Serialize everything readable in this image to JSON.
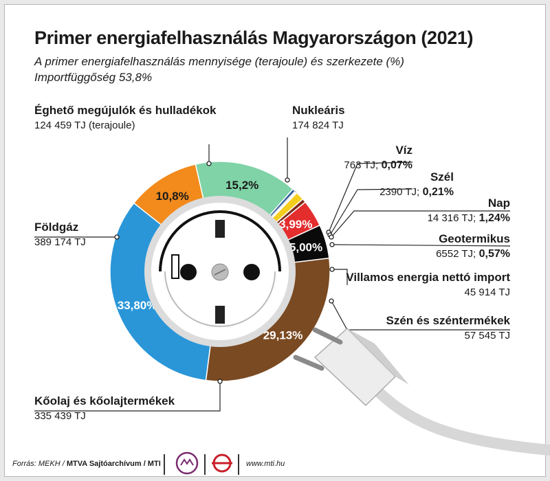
{
  "header": {
    "title": "Primer energiafelhasználás Magyarországon (2021)",
    "subtitle": "A primer energiafelhasználás mennyisége (terajoule) és szerkezete (%)",
    "import_dependency": "Importfüggőség 53,8%"
  },
  "chart_data": {
    "type": "pie",
    "title": "Primer energiafelhasználás Magyarországon (2021)",
    "subtitle": "A primer energiafelhasználás mennyisége (terajoule) és szerkezete (%)",
    "unit": "TJ",
    "slices": [
      {
        "name": "Éghető megújulók és hulladékok",
        "value": 124459,
        "value_label": "124 459 TJ (terajoule)",
        "percent": 10.8,
        "percent_label": "10,8%",
        "color": "#f28a1c"
      },
      {
        "name": "Nukleáris",
        "value": 174824,
        "value_label": "174 824 TJ",
        "percent": 15.2,
        "percent_label": "15,2%",
        "color": "#7fd3a6"
      },
      {
        "name": "Víz",
        "value": 763,
        "value_label": "763 TJ;",
        "percent": 0.07,
        "percent_label": "0,07%",
        "color": "#1a4f98"
      },
      {
        "name": "Szél",
        "value": 2390,
        "value_label": "2390 TJ;",
        "percent": 0.21,
        "percent_label": "0,21%",
        "color": "#ffffff"
      },
      {
        "name": "Nap",
        "value": 14316,
        "value_label": "14 316 TJ;",
        "percent": 1.24,
        "percent_label": "1,24%",
        "color": "#f5cd1d"
      },
      {
        "name": "Geotermikus",
        "value": 6552,
        "value_label": "6552 TJ;",
        "percent": 0.57,
        "percent_label": "0,57%",
        "color": "#7d2a1a"
      },
      {
        "name": "Villamos energia nettó import",
        "value": 45914,
        "value_label": "45 914 TJ",
        "percent": 3.99,
        "percent_label": "3,99%",
        "color": "#e42d2d"
      },
      {
        "name": "Szén és széntermékek",
        "value": 57545,
        "value_label": "57 545 TJ",
        "percent": 5.0,
        "percent_label": "5,00%",
        "color": "#0a0a0a"
      },
      {
        "name": "Kőolaj és kőolajtermékek",
        "value": 335439,
        "value_label": "335 439 TJ",
        "percent": 29.13,
        "percent_label": "29,13%",
        "color": "#7a4a22"
      },
      {
        "name": "Földgáz",
        "value": 389174,
        "value_label": "389 174 TJ",
        "percent": 33.8,
        "percent_label": "33,80%",
        "color": "#2a96d8"
      }
    ]
  },
  "footer": {
    "source_prefix": "Forrás: MEKH / ",
    "source_bold": "MTVA Sajtóarchívum / MTI",
    "website": "www.mti.hu"
  }
}
